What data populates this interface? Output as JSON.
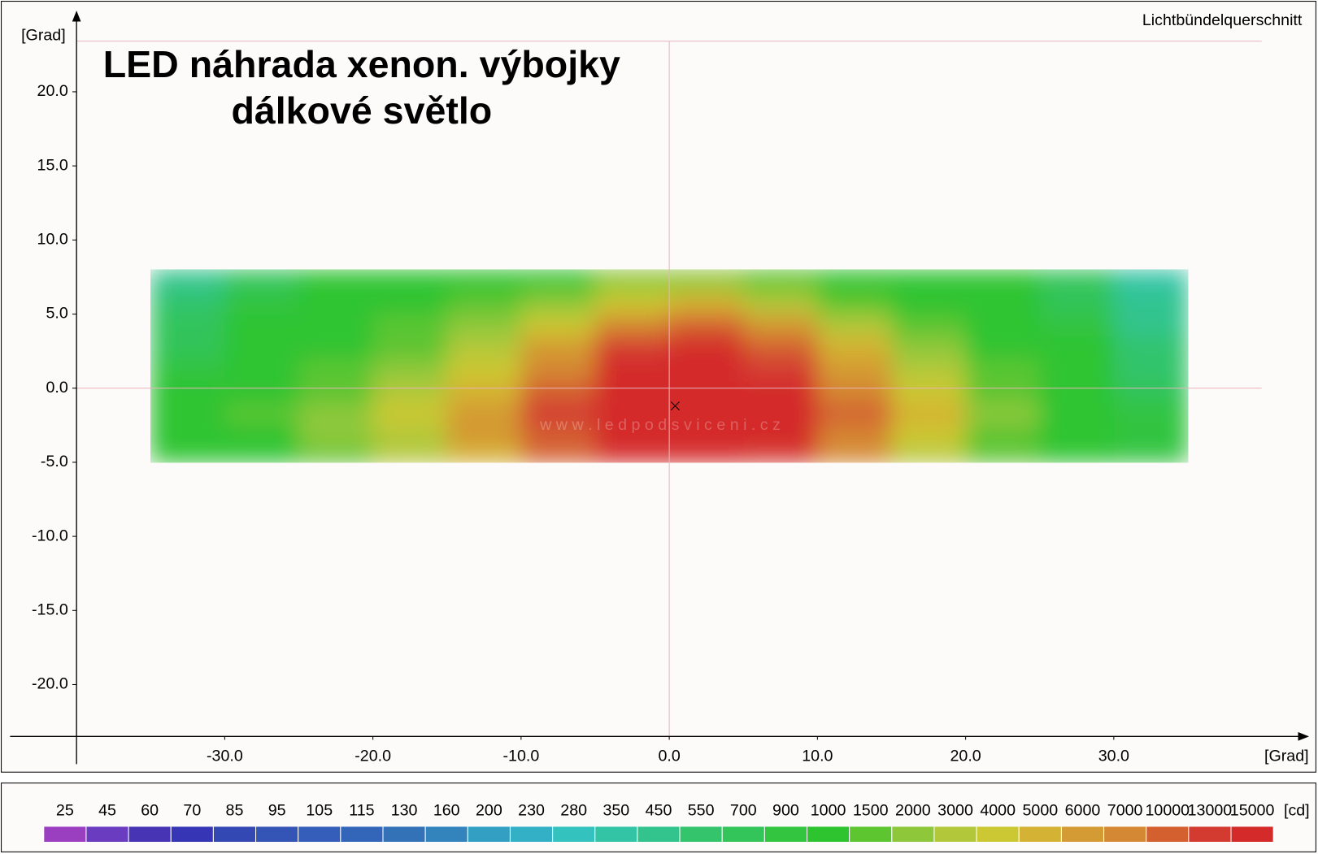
{
  "chart_data": {
    "type": "heatmap",
    "title": [
      "LED náhrada xenon. výbojky",
      "dálkové světlo"
    ],
    "corner_label": "Lichtbündelquerschnitt",
    "watermark": "w w w . l e d p o d s v i c e n i . c z",
    "x_label": "[Grad]",
    "y_label": "[Grad]",
    "xlim": [
      -40,
      43.1
    ],
    "ylim": [
      -23.5,
      25.4
    ],
    "xticks": [
      {
        "value": -30,
        "label": "-30.0"
      },
      {
        "value": -20,
        "label": "-20.0"
      },
      {
        "value": -10,
        "label": "-10.0"
      },
      {
        "value": 0,
        "label": "0.0"
      },
      {
        "value": 10,
        "label": "10.0"
      },
      {
        "value": 20,
        "label": "20.0"
      },
      {
        "value": 30,
        "label": "30.0"
      }
    ],
    "yticks": [
      {
        "value": 20,
        "label": "20.0"
      },
      {
        "value": 15,
        "label": "15.0"
      },
      {
        "value": 10,
        "label": "10.0"
      },
      {
        "value": 5,
        "label": "5.0"
      },
      {
        "value": 0,
        "label": "0.0"
      },
      {
        "value": -5,
        "label": "-5.0"
      },
      {
        "value": -10,
        "label": "-10.0"
      },
      {
        "value": -15,
        "label": "-15.0"
      },
      {
        "value": -20,
        "label": "-20.0"
      }
    ],
    "x_edges": [
      -35,
      -30,
      -25,
      -20,
      -15,
      -10,
      -5,
      0,
      5,
      10,
      15,
      20,
      25,
      30,
      35
    ],
    "y_edges": [
      8,
      6.5,
      5,
      3.5,
      2,
      0.5,
      -1,
      -2.5,
      -4,
      -5
    ],
    "z": [
      [
        500,
        800,
        1000,
        1000,
        1000,
        1200,
        2000,
        2500,
        1500,
        1000,
        1000,
        1000,
        700,
        350
      ],
      [
        600,
        900,
        1000,
        1000,
        1500,
        2000,
        4000,
        5000,
        3000,
        1500,
        1000,
        1000,
        800,
        450
      ],
      [
        700,
        1000,
        1000,
        1500,
        2000,
        4000,
        7000,
        10000,
        6000,
        3000,
        1500,
        1000,
        900,
        500
      ],
      [
        800,
        1000,
        1000,
        1500,
        3000,
        6000,
        13000,
        15000,
        10000,
        5000,
        2000,
        1000,
        1000,
        550
      ],
      [
        900,
        1000,
        1500,
        2000,
        4000,
        7000,
        15000,
        15000,
        13000,
        6000,
        3000,
        1500,
        1000,
        600
      ],
      [
        1000,
        1000,
        1500,
        3000,
        5000,
        10000,
        15000,
        15000,
        15000,
        7000,
        4000,
        1500,
        1000,
        700
      ],
      [
        1000,
        1500,
        2000,
        4000,
        6000,
        13000,
        15000,
        15000,
        15000,
        10000,
        5000,
        2000,
        1000,
        900
      ],
      [
        1000,
        1000,
        2000,
        3000,
        6000,
        10000,
        15000,
        15000,
        15000,
        7000,
        4000,
        1500,
        1000,
        900
      ],
      [
        1000,
        1000,
        1500,
        3000,
        5000,
        10000,
        15000,
        15000,
        13000,
        7000,
        3000,
        1500,
        1000,
        900
      ]
    ],
    "max_point": {
      "x": 0.4,
      "y": -1.2
    },
    "colorbar": {
      "unit": "[cd]",
      "levels": [
        25,
        45,
        60,
        70,
        85,
        95,
        105,
        115,
        130,
        160,
        200,
        230,
        280,
        350,
        450,
        550,
        700,
        900,
        1000,
        1500,
        2000,
        3000,
        4000,
        5000,
        6000,
        7000,
        10000,
        13000,
        15000
      ],
      "colors": [
        "#9a3fbf",
        "#6a3cbf",
        "#4634b5",
        "#3535b5",
        "#3348b3",
        "#3455b5",
        "#355dba",
        "#3366b8",
        "#3372b6",
        "#3384bc",
        "#33a0c3",
        "#33b0c5",
        "#33c2be",
        "#33c4a6",
        "#33c48e",
        "#33c46c",
        "#33c45a",
        "#33c440",
        "#2ec430",
        "#5cc530",
        "#8ec83a",
        "#b2c83a",
        "#ccc833",
        "#d4b233",
        "#d49a33",
        "#d48833",
        "#d46030",
        "#d43b30",
        "#d42a2a"
      ]
    }
  }
}
